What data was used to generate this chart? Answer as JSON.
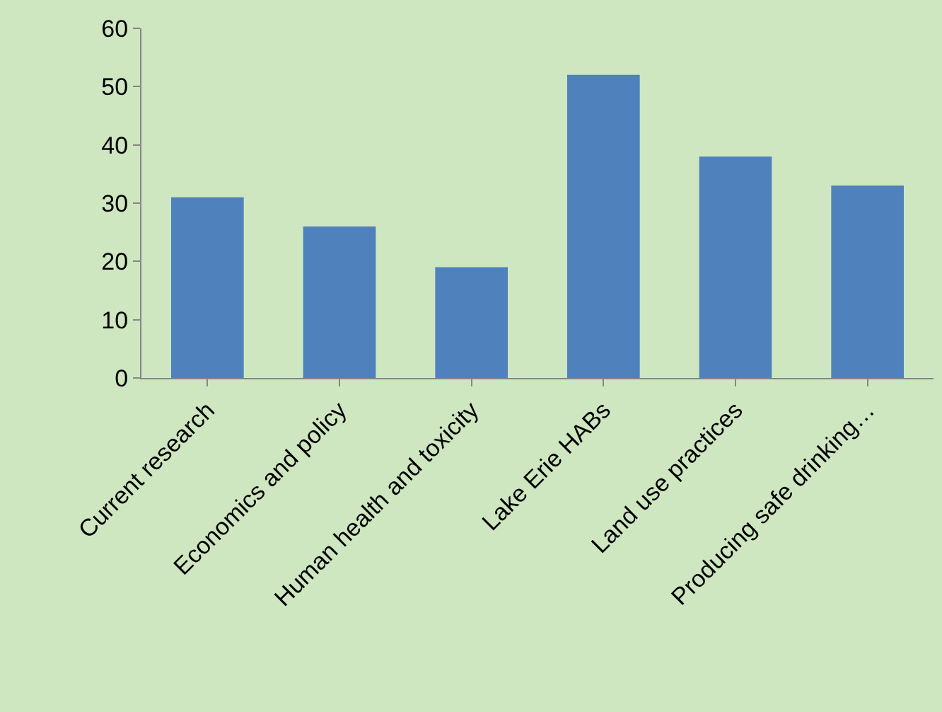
{
  "chart_data": {
    "type": "bar",
    "categories": [
      "Current research",
      "Economics and policy",
      "Human health and toxicity",
      "Lake Erie HABs",
      "Land use practices",
      "Producing safe drinking…"
    ],
    "values": [
      31,
      26,
      19,
      52,
      38,
      33
    ],
    "color": "#4f81bd",
    "ylim": [
      0,
      60
    ],
    "yticks": [
      0,
      10,
      20,
      30,
      40,
      50,
      60
    ],
    "grid": false
  }
}
